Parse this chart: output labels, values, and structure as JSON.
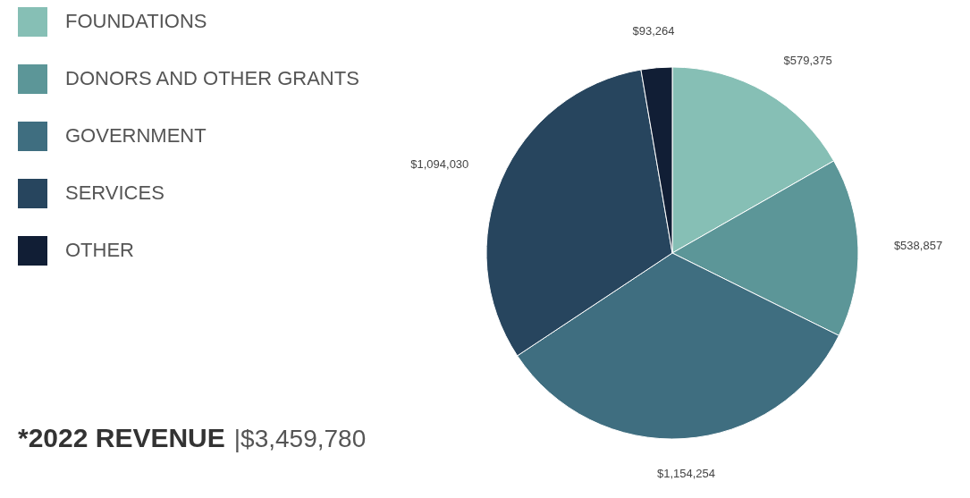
{
  "chart_data": {
    "type": "pie",
    "title": "*2022 REVENUE",
    "subtitle": "|$3,459,780",
    "categories": [
      "FOUNDATIONS",
      "DONORS AND OTHER GRANTS",
      "GOVERNMENT",
      "SERVICES",
      "OTHER"
    ],
    "values": [
      579375,
      538857,
      1154254,
      1094030,
      93264
    ],
    "colors": [
      "#86bfb5",
      "#5c9698",
      "#3f6e80",
      "#27455e",
      "#111e35"
    ],
    "value_labels": [
      "$579,375",
      "$538,857",
      "$1,154,254",
      "$1,094,030",
      "$93,264"
    ],
    "legend": "top left"
  }
}
